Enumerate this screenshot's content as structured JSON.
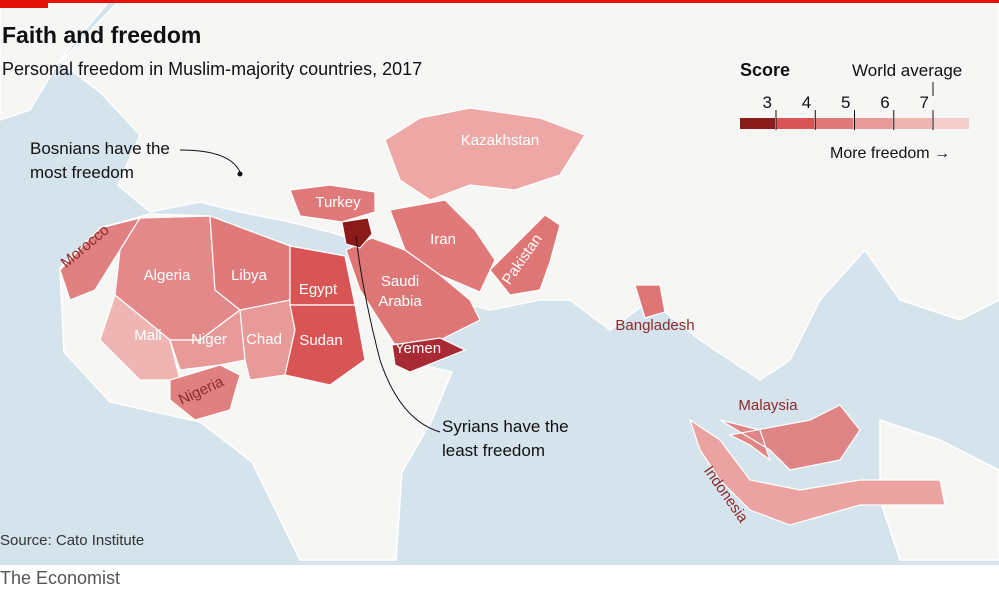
{
  "header": {
    "title": "Faith and freedom",
    "subtitle": "Personal freedom in Muslim-majority countries, 2017"
  },
  "legend": {
    "title": "Score",
    "world_average": "World average",
    "ticks": [
      3,
      4,
      5,
      6,
      7
    ],
    "colors": [
      "#8b1a1a",
      "#d95555",
      "#e07a7a",
      "#e79a98",
      "#eeb5b3",
      "#f4cfcd"
    ],
    "note": "More freedom →"
  },
  "countries": [
    {
      "label": "Morocco",
      "color": "#e08080"
    },
    {
      "label": "Algeria",
      "color": "#e4898a"
    },
    {
      "label": "Mali",
      "color": "#eeb5b3"
    },
    {
      "label": "Niger",
      "color": "#e79a98"
    },
    {
      "label": "Chad",
      "color": "#e79a98"
    },
    {
      "label": "Libya",
      "color": "#e07a7a"
    },
    {
      "label": "Egypt",
      "color": "#d95555"
    },
    {
      "label": "Sudan",
      "color": "#d95555"
    },
    {
      "label": "Nigeria",
      "color": "#e08080"
    },
    {
      "label": "Turkey",
      "color": "#e07a7a"
    },
    {
      "label": "Iran",
      "color": "#e07a7a"
    },
    {
      "label": "Saudi Arabia",
      "color": "#df7676"
    },
    {
      "label": "Yemen",
      "color": "#a82a35"
    },
    {
      "label": "Kazakhstan",
      "color": "#eda8a6"
    },
    {
      "label": "Pakistan",
      "color": "#df7676"
    },
    {
      "label": "Bangladesh",
      "color": "#df7676"
    },
    {
      "label": "Malaysia",
      "color": "#e08585"
    },
    {
      "label": "Indonesia",
      "color": "#eba3a1"
    }
  ],
  "syria_color": "#8b1a1a",
  "annotations": [
    {
      "lines": [
        "Bosnians have the",
        "most freedom"
      ]
    },
    {
      "lines": [
        "Syrians have the",
        "least freedom"
      ]
    }
  ],
  "source": "Source: Cato Institute",
  "brand": "The Economist"
}
